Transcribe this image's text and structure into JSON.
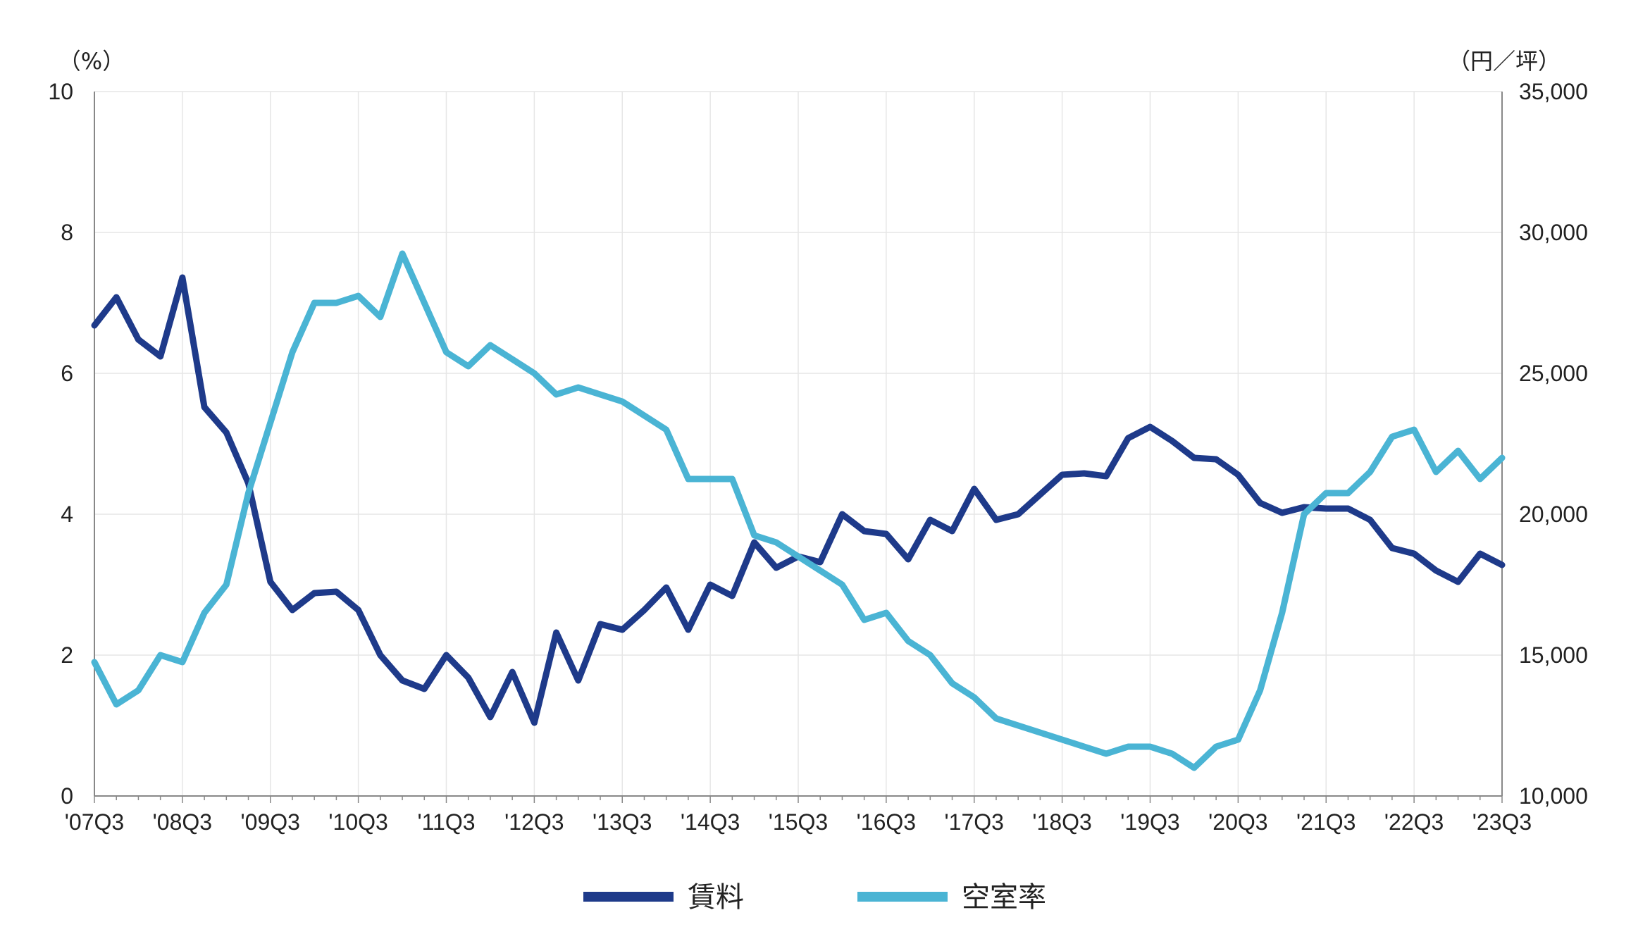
{
  "chart_data": {
    "type": "line",
    "title": "",
    "left_axis": {
      "unit": "（%）",
      "ylim": [
        0,
        10
      ],
      "ticks": [
        "0",
        "2",
        "4",
        "6",
        "8",
        "10"
      ]
    },
    "right_axis": {
      "unit": "（円／坪）",
      "ylim": [
        10000,
        35000
      ],
      "ticks": [
        "10,000",
        "15,000",
        "20,000",
        "25,000",
        "30,000",
        "35,000"
      ]
    },
    "x_tick_labels": [
      "'07Q3",
      "'08Q3",
      "'09Q3",
      "'10Q3",
      "'11Q3",
      "'12Q3",
      "'13Q3",
      "'14Q3",
      "'15Q3",
      "'16Q3",
      "'17Q3",
      "'18Q3",
      "'19Q3",
      "'20Q3",
      "'21Q3",
      "'22Q3",
      "'23Q3"
    ],
    "grid": true,
    "legend_position": "bottom-center",
    "series": [
      {
        "name": "賃料",
        "axis": "right",
        "color": "#1e3a8a",
        "values": [
          26700,
          27700,
          26200,
          25600,
          28400,
          23800,
          22900,
          21100,
          17600,
          16600,
          17200,
          17250,
          16600,
          15000,
          14100,
          13800,
          15000,
          14200,
          12800,
          14400,
          12600,
          15800,
          14100,
          16100,
          15900,
          16600,
          17400,
          15900,
          17500,
          17100,
          19000,
          18100,
          18500,
          18300,
          20000,
          19400,
          19300,
          18400,
          19800,
          19400,
          20900,
          19800,
          20000,
          20700,
          21400,
          21450,
          21350,
          22700,
          23100,
          22600,
          22000,
          21950,
          21400,
          20400,
          20050,
          20250,
          20200,
          20200,
          19800,
          18800,
          18600,
          18000,
          17600,
          18600,
          18200
        ]
      },
      {
        "name": "空室率",
        "axis": "left",
        "color": "#4ab4d4",
        "values": [
          1.9,
          1.3,
          1.5,
          2.0,
          1.9,
          2.6,
          3.0,
          4.3,
          5.3,
          6.3,
          7.0,
          7.0,
          7.1,
          6.8,
          7.7,
          7.0,
          6.3,
          6.1,
          6.4,
          6.2,
          6.0,
          5.7,
          5.8,
          5.7,
          5.6,
          5.4,
          5.2,
          4.5,
          4.5,
          4.5,
          3.7,
          3.6,
          3.4,
          3.2,
          3.0,
          2.5,
          2.6,
          2.2,
          2.0,
          1.6,
          1.4,
          1.1,
          1.0,
          0.9,
          0.8,
          0.7,
          0.6,
          0.7,
          0.7,
          0.6,
          0.4,
          0.7,
          0.8,
          1.5,
          2.6,
          4.0,
          4.3,
          4.3,
          4.6,
          5.1,
          5.2,
          4.6,
          4.9,
          4.5,
          4.8
        ]
      }
    ]
  }
}
